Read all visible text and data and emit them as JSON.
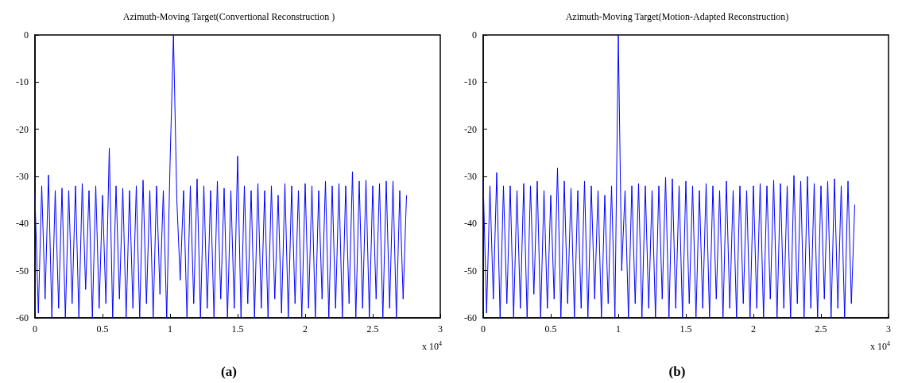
{
  "chart_data": [
    {
      "type": "line",
      "title": "Azimuth-Moving Target(Convertional Reconstruction )",
      "annotations": [
        "x 10$^{4}$",
        "(a)"
      ],
      "xlim": [
        0,
        3
      ],
      "xticks": [
        0,
        0.5,
        1,
        1.5,
        2,
        2.5,
        3
      ],
      "ylim": [
        -60,
        0
      ],
      "yticks": [
        -60,
        -50,
        -40,
        -30,
        -20,
        -10,
        0
      ],
      "marker": "none",
      "line_style": "solid",
      "x": [
        0,
        0.025,
        0.05,
        0.075,
        0.1,
        0.125,
        0.15,
        0.175,
        0.2,
        0.225,
        0.25,
        0.275,
        0.3,
        0.325,
        0.35,
        0.375,
        0.4,
        0.425,
        0.45,
        0.475,
        0.5,
        0.525,
        0.55,
        0.575,
        0.6,
        0.625,
        0.65,
        0.675,
        0.7,
        0.725,
        0.75,
        0.775,
        0.8,
        0.825,
        0.85,
        0.875,
        0.9,
        0.925,
        0.95,
        0.975,
        1,
        1.025,
        1.05,
        1.075,
        1.1,
        1.125,
        1.15,
        1.175,
        1.2,
        1.225,
        1.25,
        1.275,
        1.3,
        1.325,
        1.35,
        1.375,
        1.4,
        1.425,
        1.45,
        1.475,
        1.5,
        1.525,
        1.55,
        1.575,
        1.6,
        1.625,
        1.65,
        1.675,
        1.7,
        1.725,
        1.75,
        1.775,
        1.8,
        1.825,
        1.85,
        1.875,
        1.9,
        1.925,
        1.95,
        1.975,
        2,
        2.025,
        2.05,
        2.075,
        2.1,
        2.125,
        2.15,
        2.175,
        2.2,
        2.225,
        2.25,
        2.275,
        2.3,
        2.325,
        2.35,
        2.375,
        2.4,
        2.425,
        2.45,
        2.475,
        2.5,
        2.525,
        2.55,
        2.575,
        2.6,
        2.625,
        2.65,
        2.675,
        2.7,
        2.725,
        2.75
      ],
      "series": [
        {
          "color": "#0000ff",
          "values": [
            -34,
            -59,
            -32,
            -56,
            -29.7,
            -60,
            -33,
            -58,
            -32.5,
            -60,
            -33,
            -57,
            -32,
            -60,
            -31.5,
            -54,
            -33,
            -60,
            -32,
            -58,
            -34,
            -57,
            -24,
            -60,
            -32,
            -56,
            -32.5,
            -60,
            -33,
            -58,
            -32,
            -60,
            -30.8,
            -57,
            -33,
            -60,
            -32,
            -55,
            -33,
            -60,
            -27,
            0,
            -35,
            -52,
            -33,
            -60,
            -32,
            -57,
            -30.5,
            -60,
            -32,
            -58,
            -33,
            -60,
            -31,
            -56,
            -32.5,
            -60,
            -33,
            -58,
            -25.7,
            -60,
            -32,
            -57,
            -33,
            -60,
            -31.5,
            -58,
            -33,
            -60,
            -32,
            -56,
            -34,
            -59,
            -31.5,
            -60,
            -32,
            -57,
            -33,
            -60,
            -31.5,
            -58,
            -32,
            -60,
            -33,
            -56,
            -31,
            -60,
            -32,
            -58,
            -31.5,
            -60,
            -32,
            -57,
            -29,
            -60,
            -31,
            -58,
            -30.8,
            -60,
            -32,
            -56,
            -31.5,
            -60,
            -31,
            -58,
            -31,
            -60,
            -33,
            -56,
            -34
          ]
        }
      ]
    },
    {
      "type": "line",
      "title": "Azimuth-Moving Target(Motion-Adapted Reconstruction)",
      "annotations": [
        "x 10$^{4}$",
        "(b)"
      ],
      "xlim": [
        0,
        3
      ],
      "xticks": [
        0,
        0.5,
        1,
        1.5,
        2,
        2.5,
        3
      ],
      "ylim": [
        -60,
        0
      ],
      "yticks": [
        -60,
        -50,
        -40,
        -30,
        -20,
        -10,
        0
      ],
      "marker": "none",
      "line_style": "solid",
      "x": [
        0,
        0.025,
        0.05,
        0.075,
        0.1,
        0.125,
        0.15,
        0.175,
        0.2,
        0.225,
        0.25,
        0.275,
        0.3,
        0.325,
        0.35,
        0.375,
        0.4,
        0.425,
        0.45,
        0.475,
        0.5,
        0.525,
        0.55,
        0.575,
        0.6,
        0.625,
        0.65,
        0.675,
        0.7,
        0.725,
        0.75,
        0.775,
        0.8,
        0.825,
        0.85,
        0.875,
        0.9,
        0.925,
        0.95,
        0.975,
        1,
        1.025,
        1.05,
        1.075,
        1.1,
        1.125,
        1.15,
        1.175,
        1.2,
        1.225,
        1.25,
        1.275,
        1.3,
        1.325,
        1.35,
        1.375,
        1.4,
        1.425,
        1.45,
        1.475,
        1.5,
        1.525,
        1.55,
        1.575,
        1.6,
        1.625,
        1.65,
        1.675,
        1.7,
        1.725,
        1.75,
        1.775,
        1.8,
        1.825,
        1.85,
        1.875,
        1.9,
        1.925,
        1.95,
        1.975,
        2,
        2.025,
        2.05,
        2.075,
        2.1,
        2.125,
        2.15,
        2.175,
        2.2,
        2.225,
        2.25,
        2.275,
        2.3,
        2.325,
        2.35,
        2.375,
        2.4,
        2.425,
        2.45,
        2.475,
        2.5,
        2.525,
        2.55,
        2.575,
        2.6,
        2.625,
        2.65,
        2.675,
        2.7,
        2.725,
        2.75
      ],
      "series": [
        {
          "color": "#0000ff",
          "values": [
            -31,
            -59,
            -32,
            -56,
            -29.2,
            -60,
            -32,
            -57,
            -32,
            -60,
            -33,
            -58,
            -31.5,
            -60,
            -32,
            -55,
            -31,
            -60,
            -33,
            -58,
            -34,
            -56,
            -28.2,
            -60,
            -31,
            -57,
            -32.5,
            -60,
            -33,
            -58,
            -31,
            -60,
            -32,
            -56,
            -33,
            -60,
            -34,
            -57,
            -32,
            -60,
            0,
            -50,
            -33,
            -60,
            -32,
            -57,
            -31.5,
            -60,
            -32,
            -58,
            -33,
            -60,
            -32,
            -56,
            -30.2,
            -60,
            -30.5,
            -58,
            -32,
            -60,
            -31,
            -57,
            -32,
            -60,
            -33,
            -58,
            -31.5,
            -60,
            -32,
            -56,
            -33,
            -60,
            -31,
            -58,
            -33,
            -60,
            -32,
            -57,
            -33,
            -60,
            -32,
            -58,
            -31.5,
            -60,
            -32,
            -56,
            -30.8,
            -60,
            -31.5,
            -58,
            -32,
            -60,
            -29.8,
            -57,
            -31,
            -60,
            -30,
            -58,
            -31.5,
            -60,
            -32,
            -56,
            -31,
            -60,
            -30.5,
            -58,
            -32,
            -60,
            -31,
            -57,
            -36
          ]
        }
      ]
    }
  ]
}
